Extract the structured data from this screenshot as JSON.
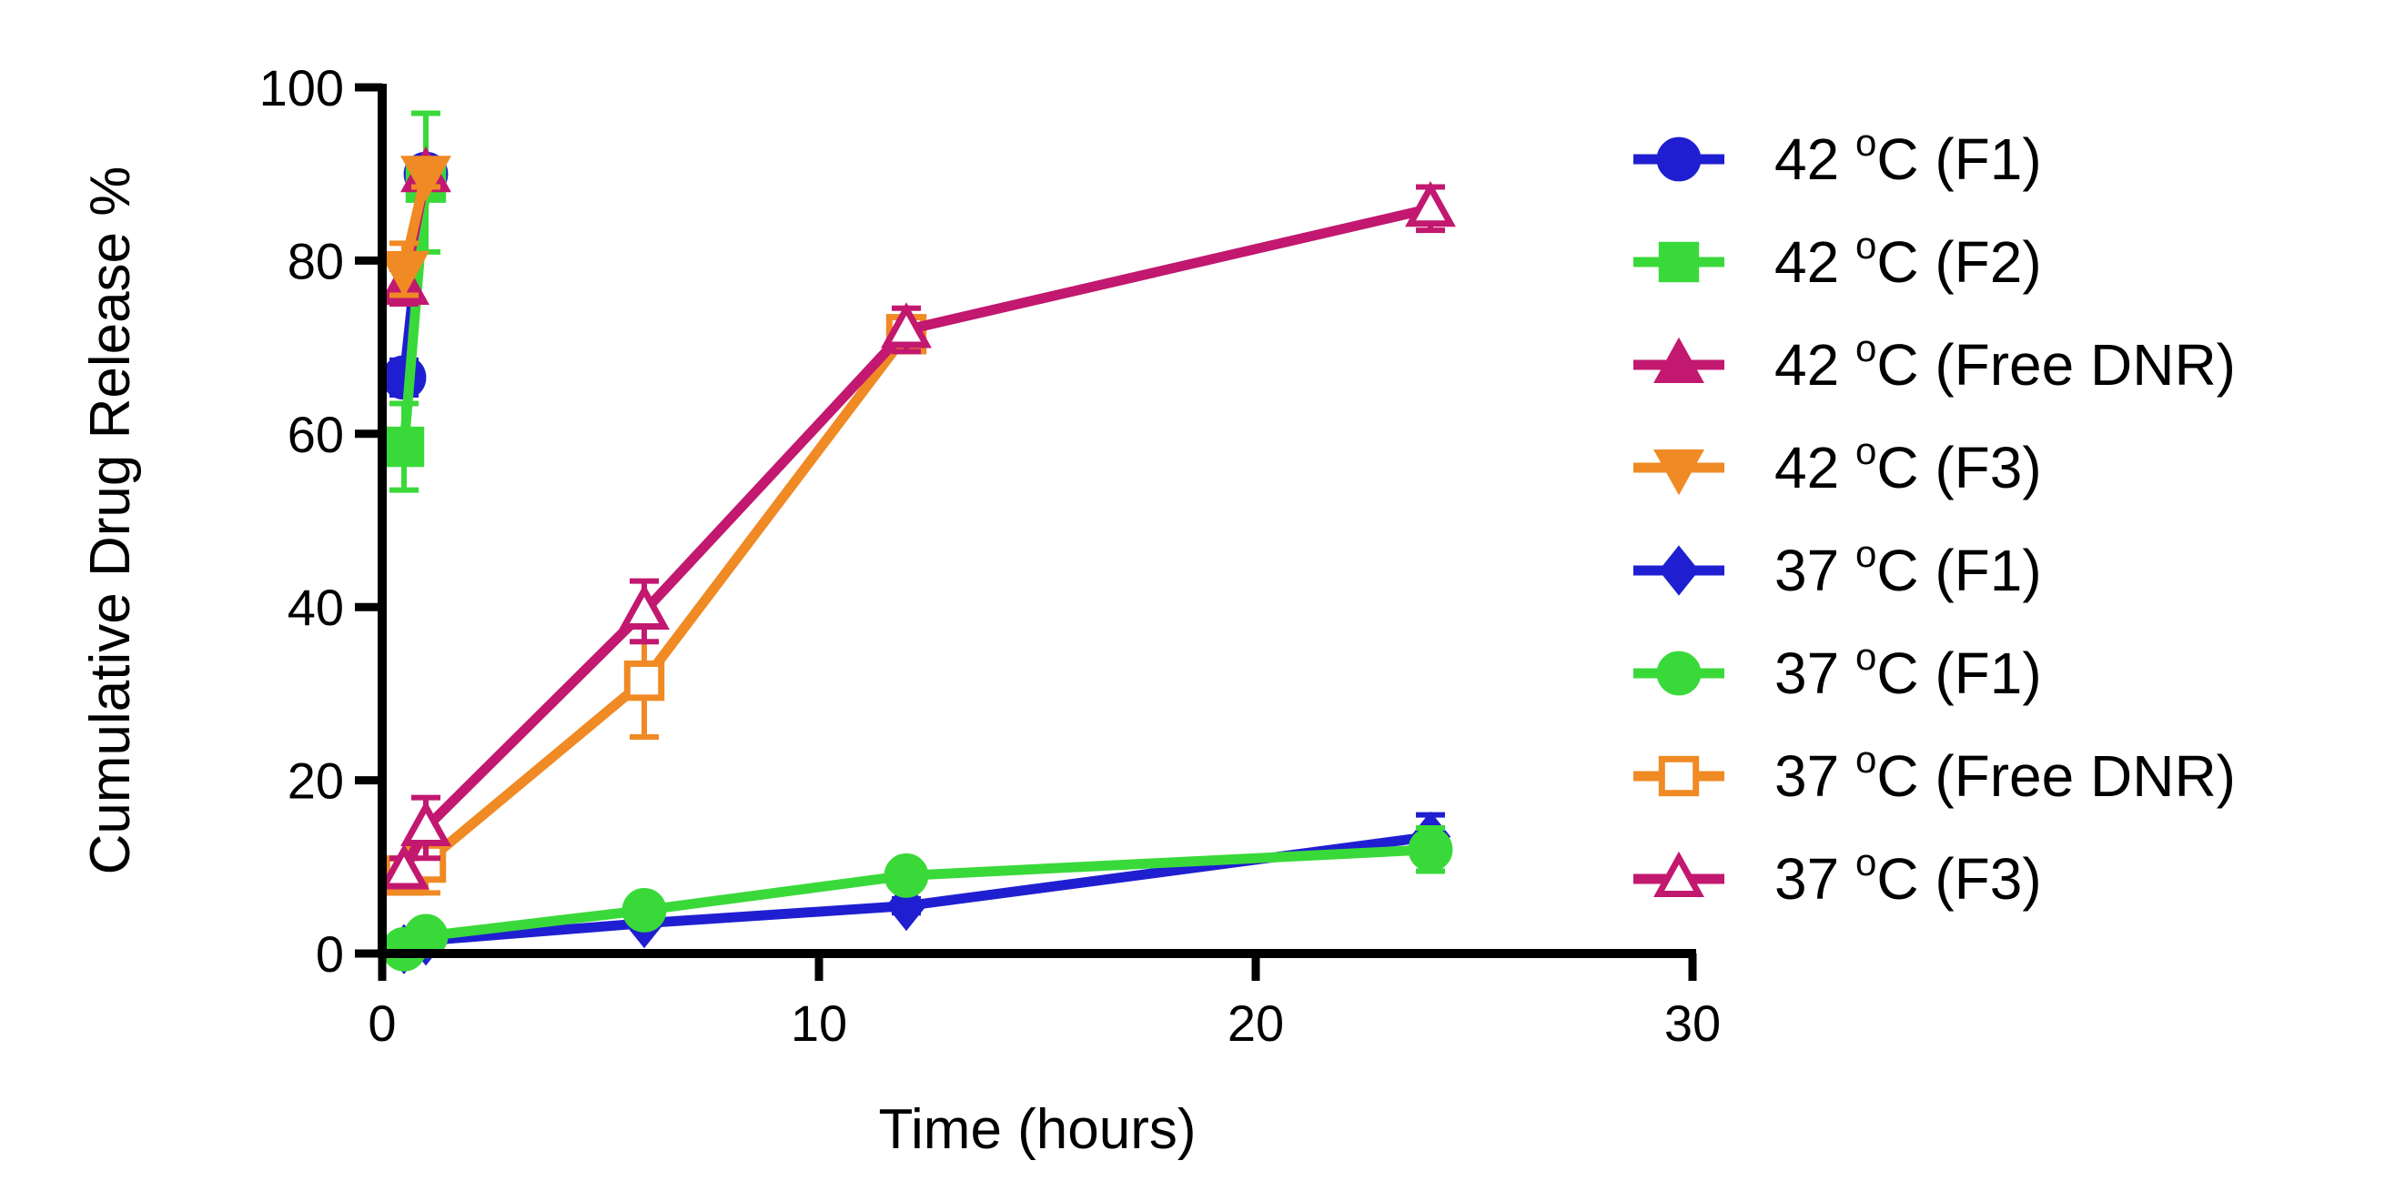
{
  "chart_data": {
    "type": "line",
    "title": "",
    "xlabel": "Time (hours)",
    "ylabel": "Cumulative Drug Release %",
    "xlim": [
      0,
      30
    ],
    "ylim": [
      0,
      100
    ],
    "xticks": [
      0,
      10,
      20,
      30
    ],
    "yticks": [
      0,
      20,
      40,
      60,
      80,
      100
    ],
    "xtick_labels": [
      "0",
      "10",
      "20",
      "30"
    ],
    "ytick_labels": [
      "0",
      "20",
      "40",
      "60",
      "80",
      "100"
    ],
    "grid": false,
    "legend_position": "right",
    "series": [
      {
        "name": "42 °C (F1)",
        "label_main": "42 ",
        "label_sup": "o",
        "label_rest": "C (F1)",
        "color": "#1f1fd1",
        "marker": "circle",
        "filled": true,
        "x": [
          0.5,
          1
        ],
        "y": [
          66.5,
          90
        ],
        "err": [
          2,
          1.5
        ]
      },
      {
        "name": "42 °C (F2)",
        "label_main": "42 ",
        "label_sup": "o",
        "label_rest": "C (F2)",
        "color": "#3ad93a",
        "marker": "square",
        "filled": true,
        "x": [
          0.5,
          1
        ],
        "y": [
          58.5,
          89
        ],
        "err": [
          5,
          8
        ]
      },
      {
        "name": "42 °C (Free DNR)",
        "label_main": "42 ",
        "label_sup": "o",
        "label_rest": "C (Free DNR)",
        "color": "#c2186f",
        "marker": "triangle-up",
        "filled": true,
        "x": [
          0.5,
          1
        ],
        "y": [
          77,
          90
        ],
        "err": [
          2,
          1.5
        ]
      },
      {
        "name": "42 °C (F3)",
        "label_main": "42 ",
        "label_sup": "o",
        "label_rest": "C (F3)",
        "color": "#f08a24",
        "marker": "triangle-down",
        "filled": true,
        "x": [
          0.5,
          1
        ],
        "y": [
          79,
          90
        ],
        "err": [
          3,
          1.5
        ]
      },
      {
        "name": "37 °C (F1)",
        "label_main": "37 ",
        "label_sup": "o",
        "label_rest": "C (F1)",
        "color": "#1f1fd1",
        "marker": "diamond",
        "filled": true,
        "x": [
          0.5,
          1,
          6,
          12,
          24
        ],
        "y": [
          0.5,
          1.5,
          3.5,
          5.5,
          13.5
        ],
        "err": [
          0.3,
          0.3,
          0.5,
          0.8,
          2.5
        ]
      },
      {
        "name": "37 °C (F1)",
        "label_main": "37 ",
        "label_sup": "o",
        "label_rest": "C (F1)",
        "color": "#3ad93a",
        "marker": "circle",
        "filled": true,
        "x": [
          0.5,
          1,
          6,
          12,
          24
        ],
        "y": [
          0.5,
          2,
          5,
          9,
          12
        ],
        "err": [
          0.3,
          0.5,
          0.8,
          1,
          2.5
        ]
      },
      {
        "name": "37 °C (Free DNR)",
        "label_main": "37 ",
        "label_sup": "o",
        "label_rest": "C (Free DNR)",
        "color": "#f08a24",
        "marker": "square",
        "filled": false,
        "x": [
          0.5,
          1,
          6,
          12
        ],
        "y": [
          9,
          10.5,
          31.5,
          71.5
        ],
        "err": [
          2,
          3.5,
          6.5,
          2
        ]
      },
      {
        "name": "37 °C (F3)",
        "label_main": "37 ",
        "label_sup": "o",
        "label_rest": "C (F3)",
        "color": "#c2186f",
        "marker": "triangle-up",
        "filled": false,
        "x": [
          0.5,
          1,
          6,
          12,
          24
        ],
        "y": [
          9.5,
          14.5,
          39.5,
          72,
          86
        ],
        "err": [
          1.5,
          3.5,
          3.5,
          2.5,
          2.5
        ]
      }
    ]
  }
}
